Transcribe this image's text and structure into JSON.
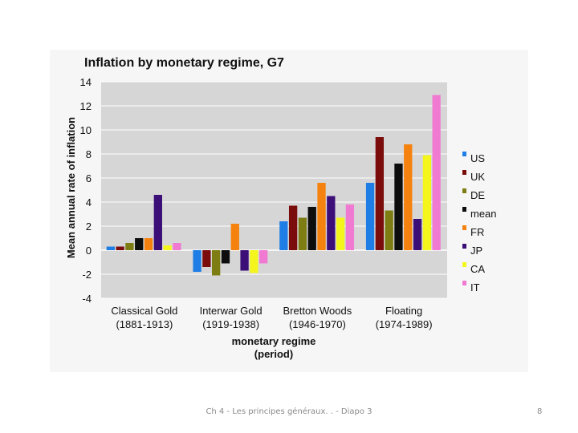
{
  "chart_data": {
    "type": "bar",
    "title": "Inflation by monetary regime, G7",
    "ylabel": "Mean annual rate of inflation",
    "xlabel_line1": "monetary regime",
    "xlabel_line2": "(period)",
    "ylim": [
      -4,
      14
    ],
    "yticks": [
      14,
      12,
      10,
      8,
      6,
      4,
      2,
      0,
      -2,
      -4
    ],
    "grid": true,
    "legend_position": "right",
    "categories": [
      {
        "name": "Classical Gold",
        "period": "(1881-1913)"
      },
      {
        "name": "Interwar Gold",
        "period": "(1919-1938)"
      },
      {
        "name": "Bretton Woods",
        "period": "(1946-1970)"
      },
      {
        "name": "Floating",
        "period": "(1974-1989)"
      }
    ],
    "series": [
      {
        "name": "US",
        "color": "#1f7ee6",
        "values": [
          0.3,
          -1.8,
          2.4,
          5.6
        ]
      },
      {
        "name": "UK",
        "color": "#7a0c0c",
        "values": [
          0.3,
          -1.4,
          3.7,
          9.4
        ]
      },
      {
        "name": "DE",
        "color": "#7d7d14",
        "values": [
          0.6,
          -2.1,
          2.7,
          3.3
        ]
      },
      {
        "name": "mean",
        "color": "#0d0d0d",
        "values": [
          1.0,
          -1.1,
          3.6,
          7.2
        ]
      },
      {
        "name": "FR",
        "color": "#f5820f",
        "values": [
          1.0,
          2.2,
          5.6,
          8.8
        ]
      },
      {
        "name": "JP",
        "color": "#3c0f78",
        "values": [
          4.6,
          -1.7,
          4.5,
          2.6
        ]
      },
      {
        "name": "CA",
        "color": "#f5f51e",
        "values": [
          0.4,
          -1.9,
          2.7,
          7.9
        ]
      },
      {
        "name": "IT",
        "color": "#f07ad2",
        "values": [
          0.6,
          -1.1,
          3.8,
          12.9
        ]
      }
    ]
  },
  "footer": {
    "text": "Ch 4 - Les principes généraux. . - Diapo 3",
    "page": "8"
  }
}
